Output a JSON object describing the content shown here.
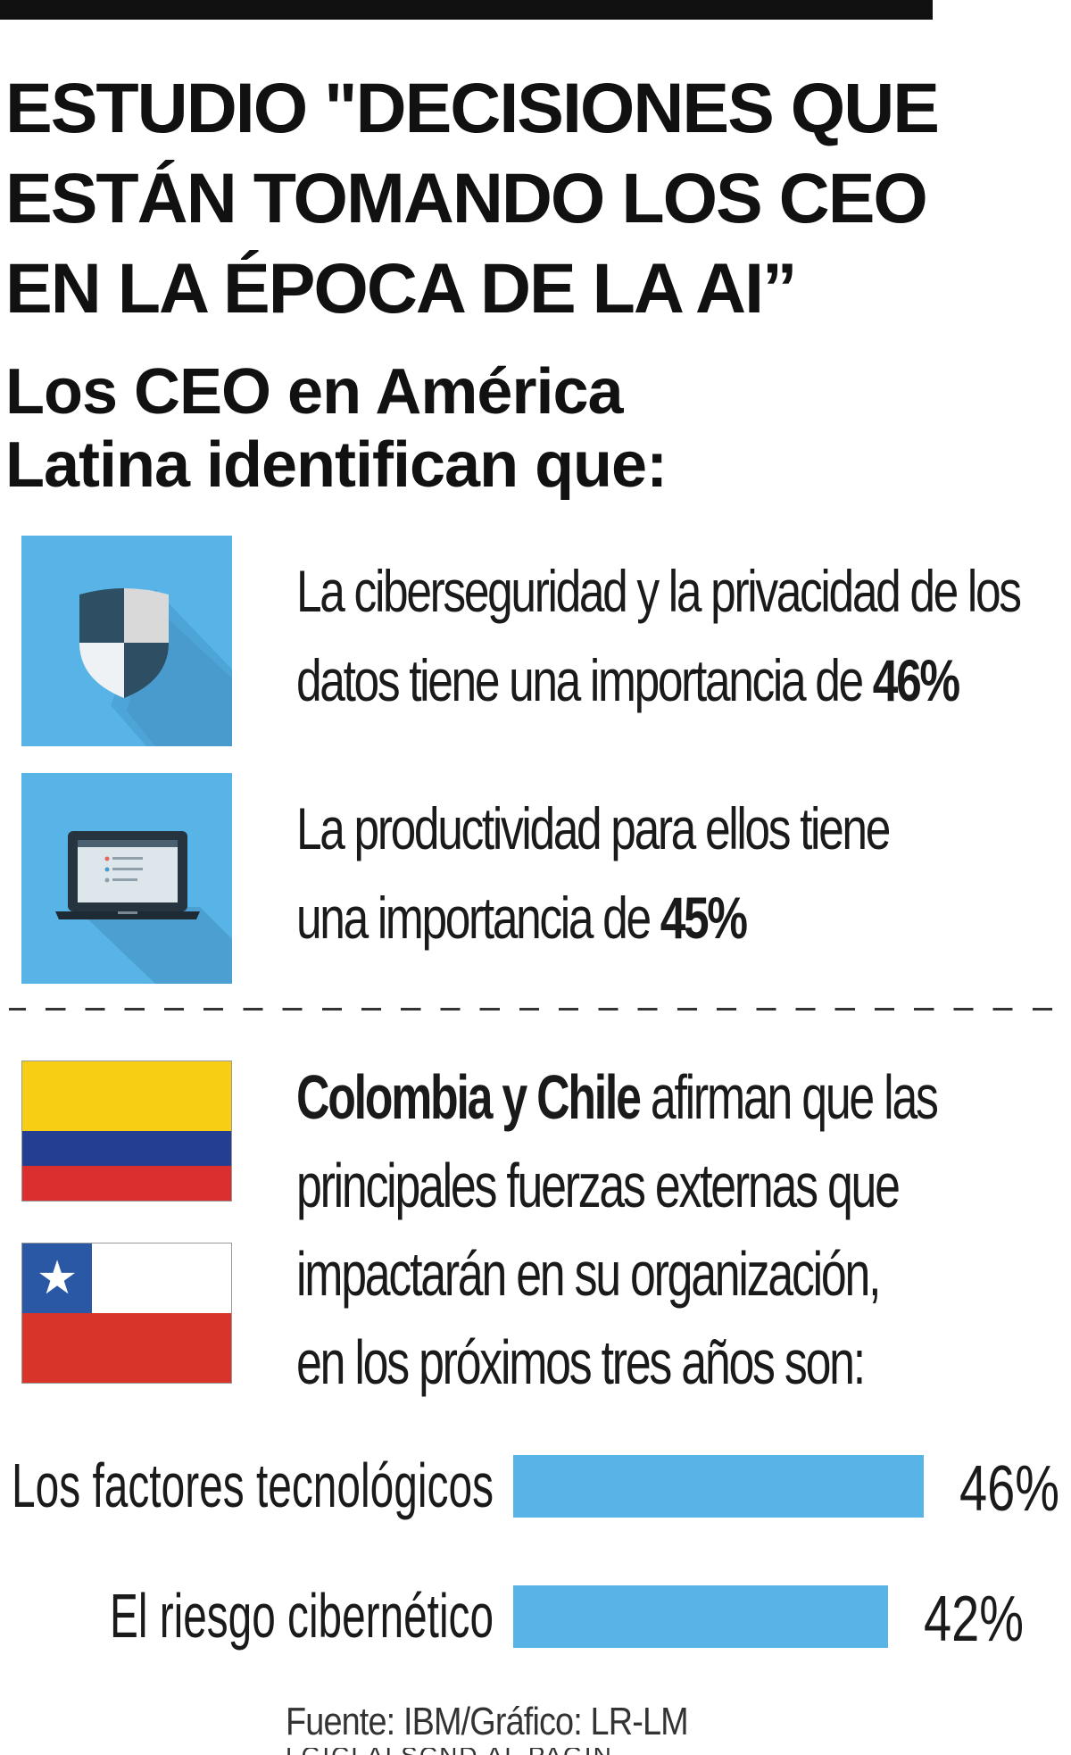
{
  "header": {
    "title_lines": [
      "ESTUDIO \"DECISIONES QUE",
      "ESTÁN TOMANDO LOS CEO",
      "EN LA ÉPOCA DE LA AI”"
    ],
    "subtitle_lines": [
      "Los CEO en América",
      "Latina identifican que:"
    ]
  },
  "stats": [
    {
      "icon": "shield-icon",
      "line1": "La ciberseguridad y la privacidad de los",
      "line2_text": "datos  tiene una importancia de ",
      "value": "46%"
    },
    {
      "icon": "laptop-icon",
      "line1": "La productividad para ellos tiene",
      "line2_text": "una importancia de ",
      "value": "45%"
    }
  ],
  "countries": {
    "bold": "Colombia y Chile",
    "line1_rest": " afirman que las",
    "line2": "principales fuerzas externas que",
    "line3": "impactarán en su organización,",
    "line4": "en los próximos tres años son:",
    "flags": [
      "colombia-flag",
      "chile-flag"
    ]
  },
  "colors": {
    "accent": "#58b4e6",
    "text": "#1a1a1a",
    "colombia": [
      "#f7ce14",
      "#243e91",
      "#d9302f"
    ],
    "chile": [
      "#2b58a4",
      "#ffffff",
      "#d93429"
    ]
  },
  "chart_data": {
    "type": "bar",
    "orientation": "horizontal",
    "categories": [
      "Los factores tecnológicos",
      "El riesgo cibernético"
    ],
    "values": [
      46,
      42
    ],
    "value_labels": [
      "46%",
      "42%"
    ],
    "unit": "%",
    "xlim": [
      0,
      50
    ],
    "bar_color": "#58b4e6",
    "grid": false
  },
  "footer": {
    "source": "Fuente: IBM/Gráfico: LR-LM",
    "clipped": "LGICLALSCND AL PAGIN..."
  }
}
